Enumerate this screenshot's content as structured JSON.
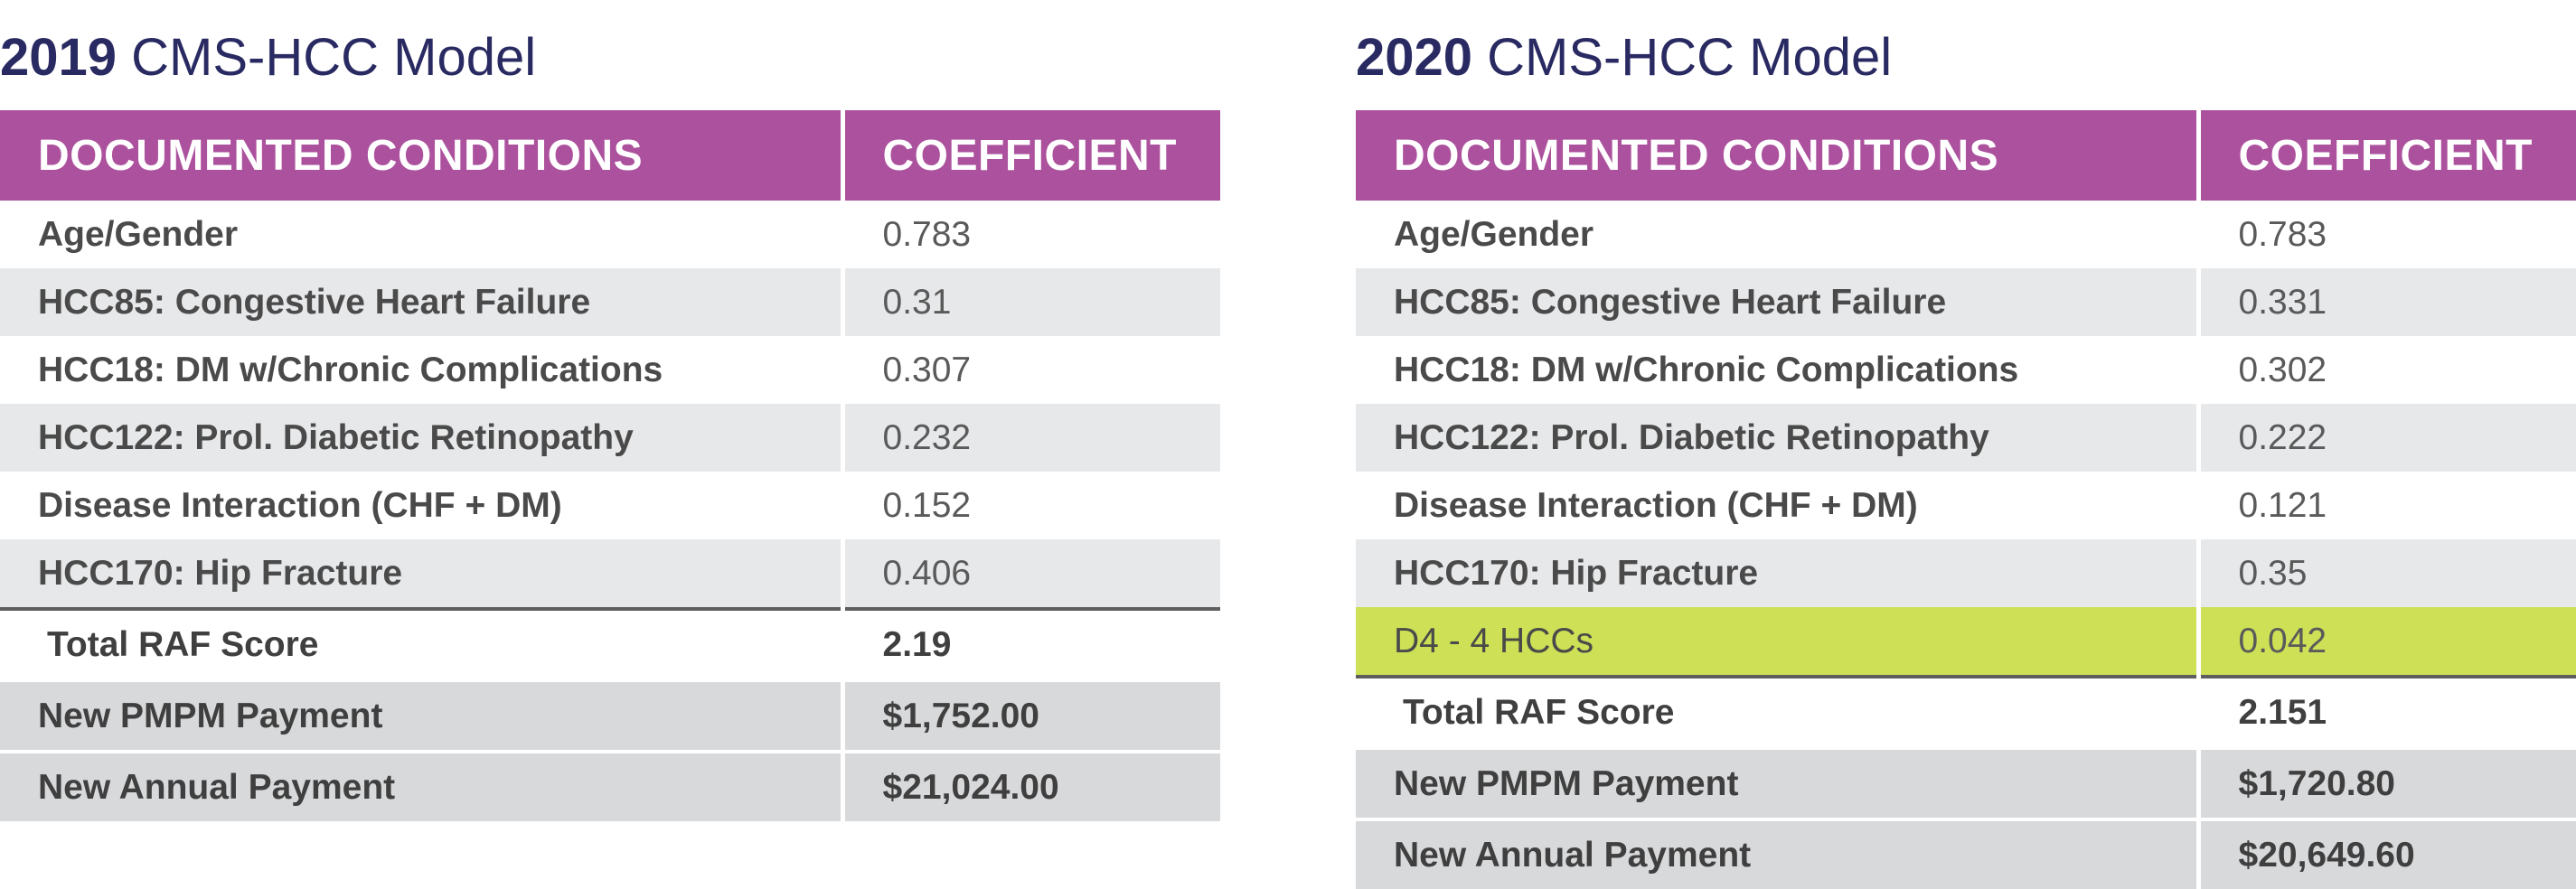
{
  "panels": [
    {
      "year": "2019",
      "model": "CMS-HCC Model",
      "header": {
        "conditions": "DOCUMENTED CONDITIONS",
        "coefficient": "COEFFICIENT"
      },
      "rows": [
        {
          "condition": "Age/Gender",
          "coefficient": "0.783"
        },
        {
          "condition": "HCC85: Congestive Heart Failure",
          "coefficient": "0.31"
        },
        {
          "condition": "HCC18: DM w/Chronic Complications",
          "coefficient": "0.307"
        },
        {
          "condition": "HCC122: Prol. Diabetic Retinopathy",
          "coefficient": "0.232"
        },
        {
          "condition": "Disease Interaction (CHF + DM)",
          "coefficient": "0.152"
        },
        {
          "condition": "HCC170: Hip Fracture",
          "coefficient": "0.406"
        }
      ],
      "summary": [
        {
          "label": "Total RAF Score",
          "value": "2.19"
        },
        {
          "label": "New PMPM Payment",
          "value": "$1,752.00"
        },
        {
          "label": "New Annual Payment",
          "value": "$21,024.00"
        }
      ]
    },
    {
      "year": "2020",
      "model": "CMS-HCC Model",
      "header": {
        "conditions": "DOCUMENTED CONDITIONS",
        "coefficient": "COEFFICIENT"
      },
      "rows": [
        {
          "condition": "Age/Gender",
          "coefficient": "0.783"
        },
        {
          "condition": "HCC85: Congestive Heart Failure",
          "coefficient": "0.331"
        },
        {
          "condition": "HCC18: DM w/Chronic Complications",
          "coefficient": "0.302"
        },
        {
          "condition": "HCC122: Prol. Diabetic Retinopathy",
          "coefficient": "0.222"
        },
        {
          "condition": "Disease Interaction (CHF + DM)",
          "coefficient": "0.121"
        },
        {
          "condition": "HCC170: Hip Fracture",
          "coefficient": "0.35"
        },
        {
          "condition": "D4 - 4 HCCs",
          "coefficient": "0.042",
          "highlight": true
        }
      ],
      "summary": [
        {
          "label": "Total RAF Score",
          "value": "2.151"
        },
        {
          "label": "New PMPM Payment",
          "value": "$1,720.80"
        },
        {
          "label": "New Annual Payment",
          "value": "$20,649.60"
        }
      ]
    }
  ],
  "colors": {
    "header_bg": "#ac519d",
    "title_text": "#2a2a63",
    "stripe": "#e7e8ea",
    "highlight": "#cde056",
    "summary_bg": "#d8d9db"
  }
}
